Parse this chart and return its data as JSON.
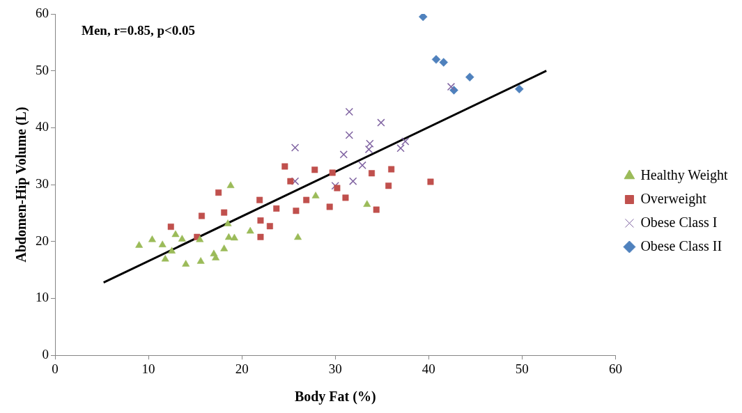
{
  "chart_data": {
    "type": "scatter",
    "xlabel": "Body Fat (%)",
    "ylabel": "Abdomen-Hip Volume (L)",
    "annotations": [
      "Men, r=0.85, p<0.05"
    ],
    "xlim": [
      0,
      60
    ],
    "ylim": [
      0,
      60
    ],
    "xticks": [
      0,
      10,
      20,
      30,
      40,
      50,
      60
    ],
    "yticks": [
      0,
      10,
      20,
      30,
      40,
      50,
      60
    ],
    "grid": false,
    "legend": "right",
    "series": [
      {
        "name": "Healthy Weight",
        "color": "#9bbb59",
        "marker": "triangle",
        "x": [
          9.0,
          10.4,
          11.5,
          11.8,
          12.9,
          12.5,
          13.6,
          14.0,
          15.5,
          15.6,
          17.0,
          17.2,
          18.1,
          18.5,
          18.8,
          18.6,
          19.2,
          20.9,
          26.0,
          27.9,
          33.4
        ],
        "values": [
          19.3,
          20.3,
          19.4,
          16.9,
          21.2,
          18.3,
          20.4,
          16.0,
          20.3,
          16.5,
          17.8,
          17.1,
          18.7,
          23.1,
          29.8,
          20.7,
          20.6,
          21.8,
          20.7,
          28.0,
          26.5
        ]
      },
      {
        "name": "Overweight",
        "color": "#c0504d",
        "marker": "square",
        "x": [
          12.4,
          15.2,
          15.7,
          17.5,
          18.1,
          21.9,
          22.0,
          22.0,
          23.0,
          23.7,
          24.6,
          25.2,
          25.8,
          26.9,
          27.8,
          29.4,
          29.7,
          30.2,
          31.1,
          33.9,
          34.4,
          36.0,
          35.7,
          40.2
        ],
        "values": [
          22.6,
          20.8,
          24.5,
          28.6,
          25.1,
          27.3,
          23.7,
          20.8,
          22.7,
          25.8,
          33.2,
          30.6,
          25.4,
          27.3,
          32.6,
          26.1,
          32.1,
          29.4,
          27.7,
          32.0,
          25.6,
          32.7,
          29.8,
          30.5
        ]
      },
      {
        "name": "Obese Class I",
        "color": "#8064a2",
        "marker": "cross",
        "x": [
          25.7,
          25.7,
          31.5,
          31.5,
          30.9,
          30.0,
          31.9,
          32.9,
          33.7,
          33.6,
          34.9,
          37.0,
          37.5,
          42.4
        ],
        "values": [
          36.5,
          30.6,
          42.8,
          38.7,
          35.3,
          29.8,
          30.6,
          33.4,
          37.2,
          36.2,
          40.9,
          36.4,
          37.6,
          47.2
        ]
      },
      {
        "name": "Obese Class II",
        "color": "#4f81bd",
        "marker": "diamond",
        "x": [
          39.4,
          40.8,
          41.6,
          42.7,
          44.4,
          49.7
        ],
        "values": [
          59.5,
          52.0,
          51.5,
          46.6,
          48.9,
          46.8
        ]
      },
      {
        "type": "line",
        "color": "#000000",
        "marker": "none",
        "x": [
          5.2,
          52.6
        ],
        "values": [
          12.8,
          50.0
        ]
      }
    ]
  }
}
